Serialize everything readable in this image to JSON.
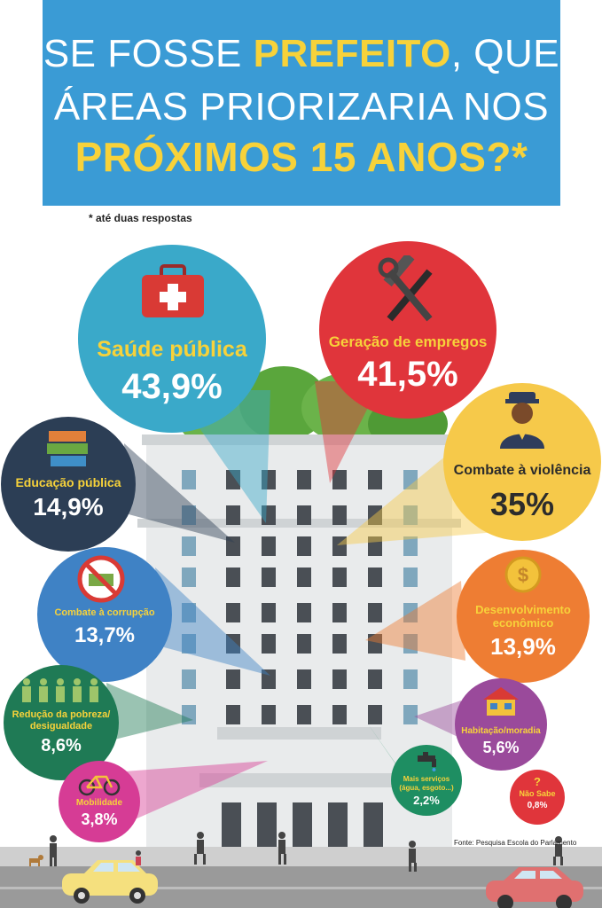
{
  "title": {
    "line1_pre": "SE FOSSE ",
    "line1_hl": "PREFEITO",
    "line1_post": ", QUE",
    "line2": "ÁREAS PRIORIZARIA NOS",
    "line3": "PRÓXIMOS 15 ANOS?*"
  },
  "note": "* até duas respostas",
  "source": "Fonte: Pesquisa Escola do Parlamento",
  "colors": {
    "banner": "#3a9bd5",
    "highlight": "#f7d23a",
    "saude": "#3aa9c9",
    "empregos": "#e0353b",
    "violencia": "#f6c94a",
    "educacao": "#2c3e55",
    "corrupcao": "#3f82c5",
    "desenvolvimento": "#ee7d33",
    "pobreza": "#1f7a55",
    "habitacao": "#9a4a9b",
    "mobilidade": "#d63c95",
    "servicos": "#1e8e62",
    "nao_sabe": "#e0353b"
  },
  "items": {
    "saude": {
      "label": "Saúde pública",
      "value": "43,9%",
      "icon": "first-aid-kit-icon"
    },
    "empregos": {
      "label": "Geração de empregos",
      "value": "41,5%",
      "icon": "hammer-wrench-icon"
    },
    "violencia": {
      "label": "Combate à violência",
      "value": "35%",
      "icon": "police-officer-icon"
    },
    "educacao": {
      "label": "Educação pública",
      "value": "14,9%",
      "icon": "books-icon"
    },
    "corrupcao": {
      "label": "Combate à corrupção",
      "value": "13,7%",
      "icon": "no-bribe-icon"
    },
    "desenvolvimento": {
      "label1": "Desenvolvimento",
      "label2": "econômico",
      "value": "13,9%",
      "icon": "coin-icon"
    },
    "pobreza": {
      "label1": "Redução da pobreza/",
      "label2": "desigualdade",
      "value": "8,6%",
      "icon": "people-icon"
    },
    "habitacao": {
      "label": "Habitação/moradia",
      "value": "5,6%",
      "icon": "house-icon"
    },
    "mobilidade": {
      "label": "Mobilidade",
      "value": "3,8%",
      "icon": "bicycle-icon"
    },
    "servicos": {
      "label1": "Mais serviços",
      "label2": "(água, esgoto...)",
      "value": "2,2%",
      "icon": "faucet-icon"
    },
    "nao_sabe": {
      "label": "Não Sabe",
      "value": "0,8%",
      "icon": "question-mark-icon",
      "mark": "?"
    }
  }
}
